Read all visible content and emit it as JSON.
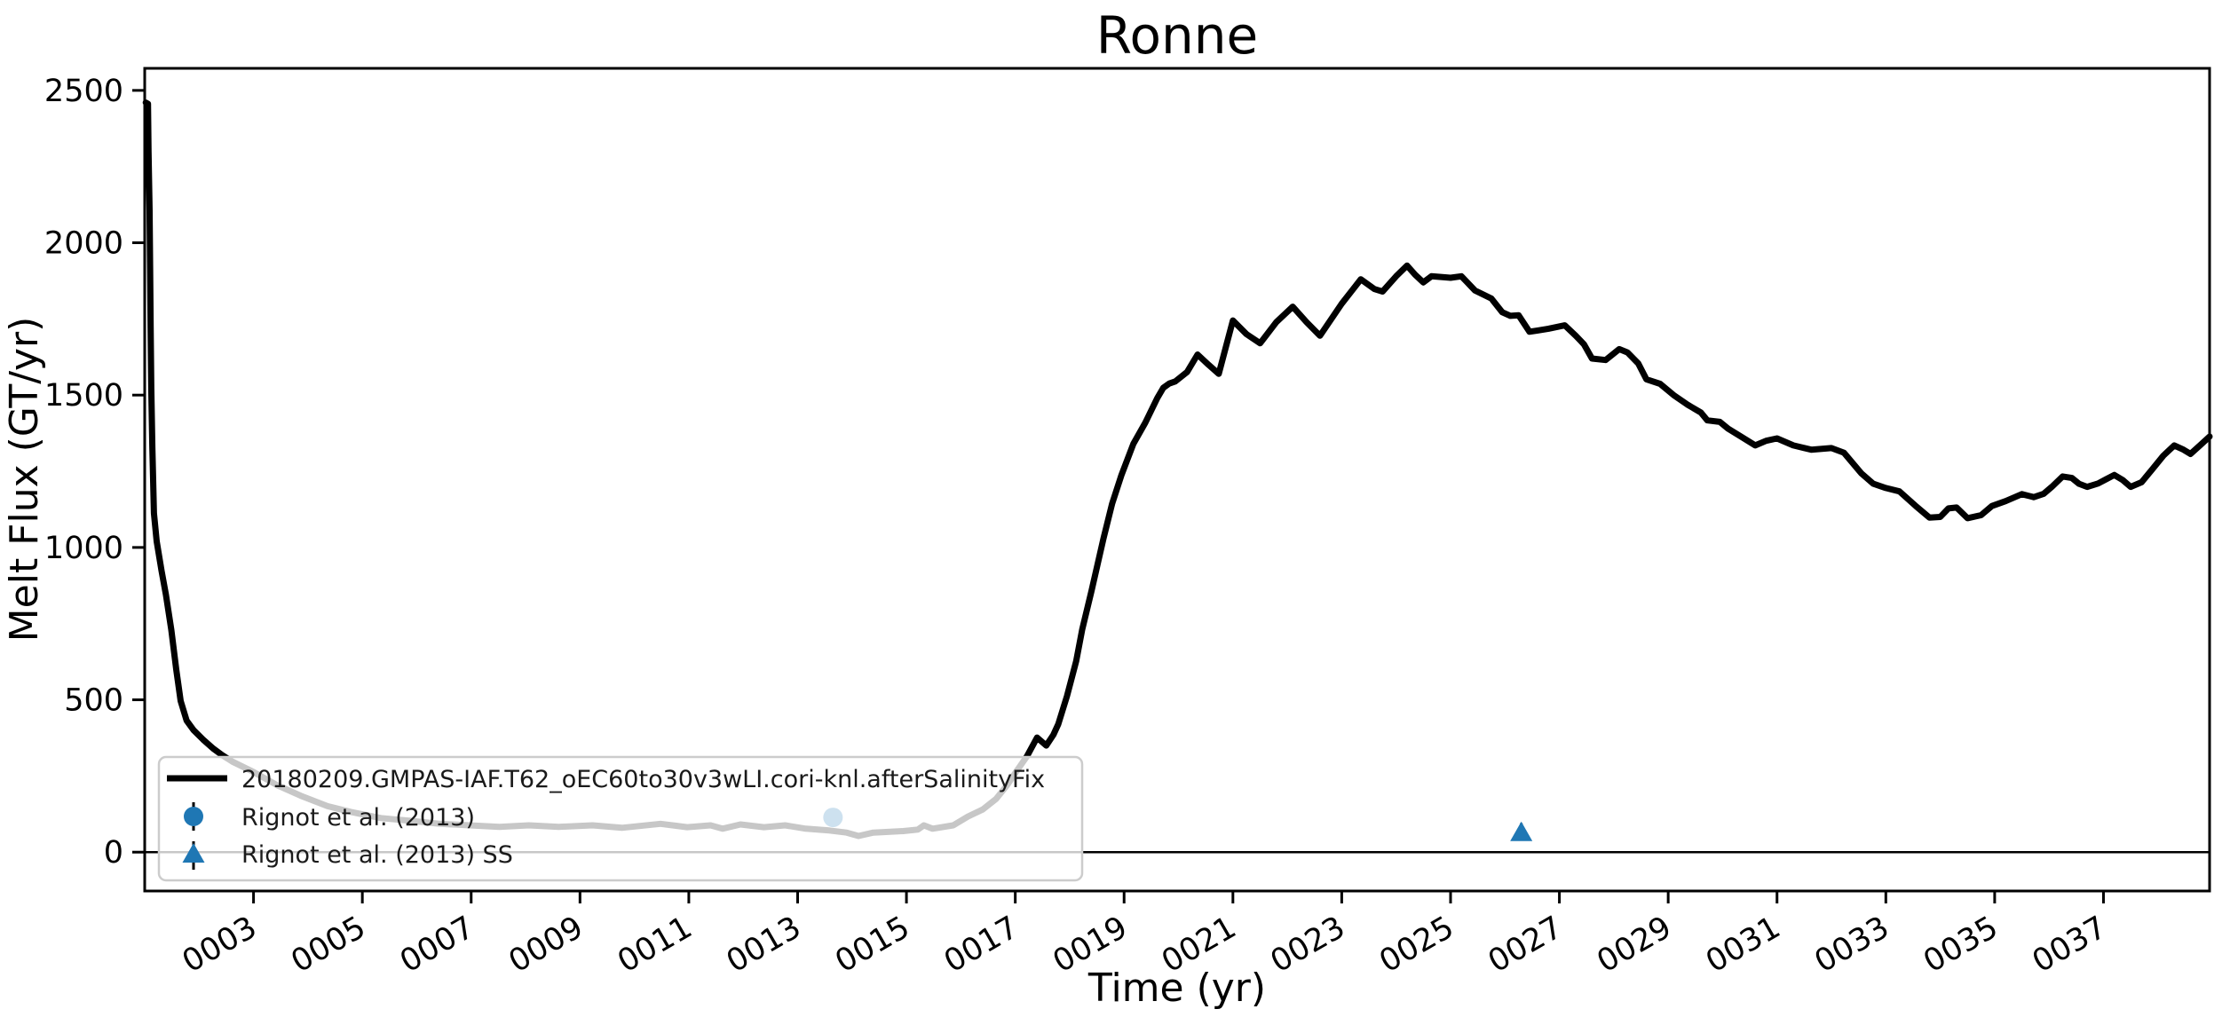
{
  "chart_data": {
    "type": "line",
    "title": "Ronne",
    "xlabel": "Time (yr)",
    "ylabel": "Melt Flux (GT/yr)",
    "xlim": [
      1.0,
      38.95
    ],
    "ylim": [
      -127.5,
      2572.4
    ],
    "grid": false,
    "zero_line": 0,
    "x_ticks": {
      "values": [
        3,
        5,
        7,
        9,
        11,
        13,
        15,
        17,
        19,
        21,
        23,
        25,
        27,
        29,
        31,
        33,
        35,
        37
      ],
      "labels": [
        "0003",
        "0005",
        "0007",
        "0009",
        "0011",
        "0013",
        "0015",
        "0017",
        "0019",
        "0021",
        "0023",
        "0025",
        "0027",
        "0029",
        "0031",
        "0033",
        "0035",
        "0037"
      ],
      "rotation_deg": -30
    },
    "y_ticks": {
      "values": [
        0,
        500,
        1000,
        1500,
        2000,
        2500
      ],
      "labels": [
        "0",
        "500",
        "1000",
        "1500",
        "2000",
        "2500"
      ]
    },
    "series": [
      {
        "name": "20180209.GMPAS-IAF.T62_oEC60to30v3wLI.cori-knl.afterSalinityFix",
        "type": "line",
        "color": "#000000",
        "linewidth": 7,
        "points": [
          [
            1.02,
            2460
          ],
          [
            1.06,
            2456
          ],
          [
            1.07,
            2300
          ],
          [
            1.09,
            2105
          ],
          [
            1.1,
            1915
          ],
          [
            1.11,
            1720
          ],
          [
            1.12,
            1525
          ],
          [
            1.14,
            1330
          ],
          [
            1.16,
            1185
          ],
          [
            1.17,
            1112
          ],
          [
            1.22,
            1020
          ],
          [
            1.31,
            923
          ],
          [
            1.39,
            845
          ],
          [
            1.49,
            729
          ],
          [
            1.58,
            600
          ],
          [
            1.66,
            496
          ],
          [
            1.77,
            432
          ],
          [
            1.9,
            400
          ],
          [
            2.07,
            370
          ],
          [
            2.26,
            340
          ],
          [
            2.42,
            319
          ],
          [
            2.61,
            297
          ],
          [
            3.0,
            263
          ],
          [
            3.44,
            219
          ],
          [
            3.87,
            185
          ],
          [
            4.36,
            151
          ],
          [
            4.79,
            132
          ],
          [
            5.34,
            112
          ],
          [
            5.88,
            103
          ],
          [
            6.43,
            93
          ],
          [
            6.97,
            88
          ],
          [
            7.52,
            83
          ],
          [
            8.06,
            88
          ],
          [
            8.61,
            83
          ],
          [
            9.23,
            88
          ],
          [
            9.77,
            80
          ],
          [
            10.48,
            93
          ],
          [
            10.97,
            82
          ],
          [
            11.4,
            88
          ],
          [
            11.62,
            77
          ],
          [
            11.95,
            91
          ],
          [
            12.38,
            82
          ],
          [
            12.77,
            88
          ],
          [
            13.15,
            77
          ],
          [
            13.58,
            71
          ],
          [
            13.9,
            64
          ],
          [
            14.12,
            53
          ],
          [
            14.39,
            64
          ],
          [
            14.94,
            69
          ],
          [
            15.21,
            74
          ],
          [
            15.32,
            88
          ],
          [
            15.48,
            77
          ],
          [
            15.86,
            88
          ],
          [
            16.13,
            117
          ],
          [
            16.4,
            140
          ],
          [
            16.65,
            175
          ],
          [
            16.85,
            220
          ],
          [
            17.0,
            260
          ],
          [
            17.22,
            316
          ],
          [
            17.4,
            376
          ],
          [
            17.57,
            350
          ],
          [
            17.7,
            385
          ],
          [
            17.79,
            420
          ],
          [
            17.95,
            512
          ],
          [
            18.12,
            627
          ],
          [
            18.23,
            730
          ],
          [
            18.4,
            857
          ],
          [
            18.62,
            1029
          ],
          [
            18.78,
            1144
          ],
          [
            18.95,
            1237
          ],
          [
            19.17,
            1340
          ],
          [
            19.39,
            1409
          ],
          [
            19.61,
            1490
          ],
          [
            19.72,
            1524
          ],
          [
            19.83,
            1538
          ],
          [
            19.94,
            1545
          ],
          [
            20.16,
            1576
          ],
          [
            20.35,
            1633
          ],
          [
            20.55,
            1600
          ],
          [
            20.74,
            1570
          ],
          [
            21.0,
            1745
          ],
          [
            21.25,
            1700
          ],
          [
            21.5,
            1670
          ],
          [
            21.8,
            1740
          ],
          [
            22.1,
            1790
          ],
          [
            22.35,
            1740
          ],
          [
            22.6,
            1695
          ],
          [
            23.0,
            1800
          ],
          [
            23.35,
            1880
          ],
          [
            23.6,
            1848
          ],
          [
            23.75,
            1840
          ],
          [
            24.0,
            1890
          ],
          [
            24.2,
            1925
          ],
          [
            24.35,
            1895
          ],
          [
            24.5,
            1870
          ],
          [
            24.65,
            1890
          ],
          [
            25.0,
            1885
          ],
          [
            25.2,
            1890
          ],
          [
            25.45,
            1843
          ],
          [
            25.6,
            1830
          ],
          [
            25.75,
            1817
          ],
          [
            25.95,
            1772
          ],
          [
            26.1,
            1760
          ],
          [
            26.25,
            1762
          ],
          [
            26.45,
            1708
          ],
          [
            26.6,
            1712
          ],
          [
            26.8,
            1718
          ],
          [
            27.1,
            1729
          ],
          [
            27.3,
            1695
          ],
          [
            27.45,
            1667
          ],
          [
            27.6,
            1620
          ],
          [
            27.85,
            1615
          ],
          [
            28.1,
            1651
          ],
          [
            28.25,
            1640
          ],
          [
            28.45,
            1604
          ],
          [
            28.6,
            1552
          ],
          [
            28.85,
            1537
          ],
          [
            29.1,
            1500
          ],
          [
            29.35,
            1469
          ],
          [
            29.6,
            1443
          ],
          [
            29.72,
            1417
          ],
          [
            29.95,
            1412
          ],
          [
            30.1,
            1390
          ],
          [
            30.3,
            1368
          ],
          [
            30.6,
            1335
          ],
          [
            30.8,
            1350
          ],
          [
            31.0,
            1358
          ],
          [
            31.3,
            1335
          ],
          [
            31.63,
            1321
          ],
          [
            32.0,
            1326
          ],
          [
            32.23,
            1311
          ],
          [
            32.55,
            1243
          ],
          [
            32.77,
            1209
          ],
          [
            33.0,
            1195
          ],
          [
            33.25,
            1184
          ],
          [
            33.55,
            1136
          ],
          [
            33.8,
            1098
          ],
          [
            34.0,
            1100
          ],
          [
            34.15,
            1128
          ],
          [
            34.3,
            1131
          ],
          [
            34.5,
            1096
          ],
          [
            34.75,
            1106
          ],
          [
            34.95,
            1136
          ],
          [
            35.2,
            1152
          ],
          [
            35.5,
            1175
          ],
          [
            35.72,
            1165
          ],
          [
            35.9,
            1176
          ],
          [
            36.05,
            1199
          ],
          [
            36.25,
            1233
          ],
          [
            36.42,
            1228
          ],
          [
            36.55,
            1209
          ],
          [
            36.7,
            1199
          ],
          [
            36.9,
            1210
          ],
          [
            37.05,
            1224
          ],
          [
            37.2,
            1238
          ],
          [
            37.35,
            1222
          ],
          [
            37.5,
            1199
          ],
          [
            37.7,
            1214
          ],
          [
            37.9,
            1257
          ],
          [
            38.1,
            1301
          ],
          [
            38.3,
            1335
          ],
          [
            38.47,
            1321
          ],
          [
            38.6,
            1307
          ],
          [
            38.78,
            1336
          ],
          [
            38.95,
            1364
          ]
        ]
      },
      {
        "name": "Rignot et al. (2013)",
        "type": "scatter",
        "marker": "circle",
        "color": "#1f77b4",
        "points": [
          [
            13.65,
            114
          ]
        ],
        "yerr": 30
      },
      {
        "name": "Rignot et al. (2013) SS",
        "type": "scatter",
        "marker": "triangle",
        "color": "#1f77b4",
        "points": [
          [
            26.3,
            67
          ]
        ],
        "yerr": 28
      }
    ],
    "legend": {
      "position": "lower left",
      "frame_alpha": 0.78,
      "entries": [
        {
          "marker": "line",
          "label": "20180209.GMPAS-IAF.T62_oEC60to30v3wLI.cori-knl.afterSalinityFix"
        },
        {
          "marker": "circle",
          "label": "Rignot et al. (2013)"
        },
        {
          "marker": "triangle",
          "label": "Rignot et al. (2013) SS"
        }
      ]
    }
  },
  "colors": {
    "series_line": "#000000",
    "observation": "#1f77b4",
    "error_bar": "#000000",
    "legend_border": "#cccccc",
    "axis": "#000000",
    "background": "#ffffff"
  }
}
